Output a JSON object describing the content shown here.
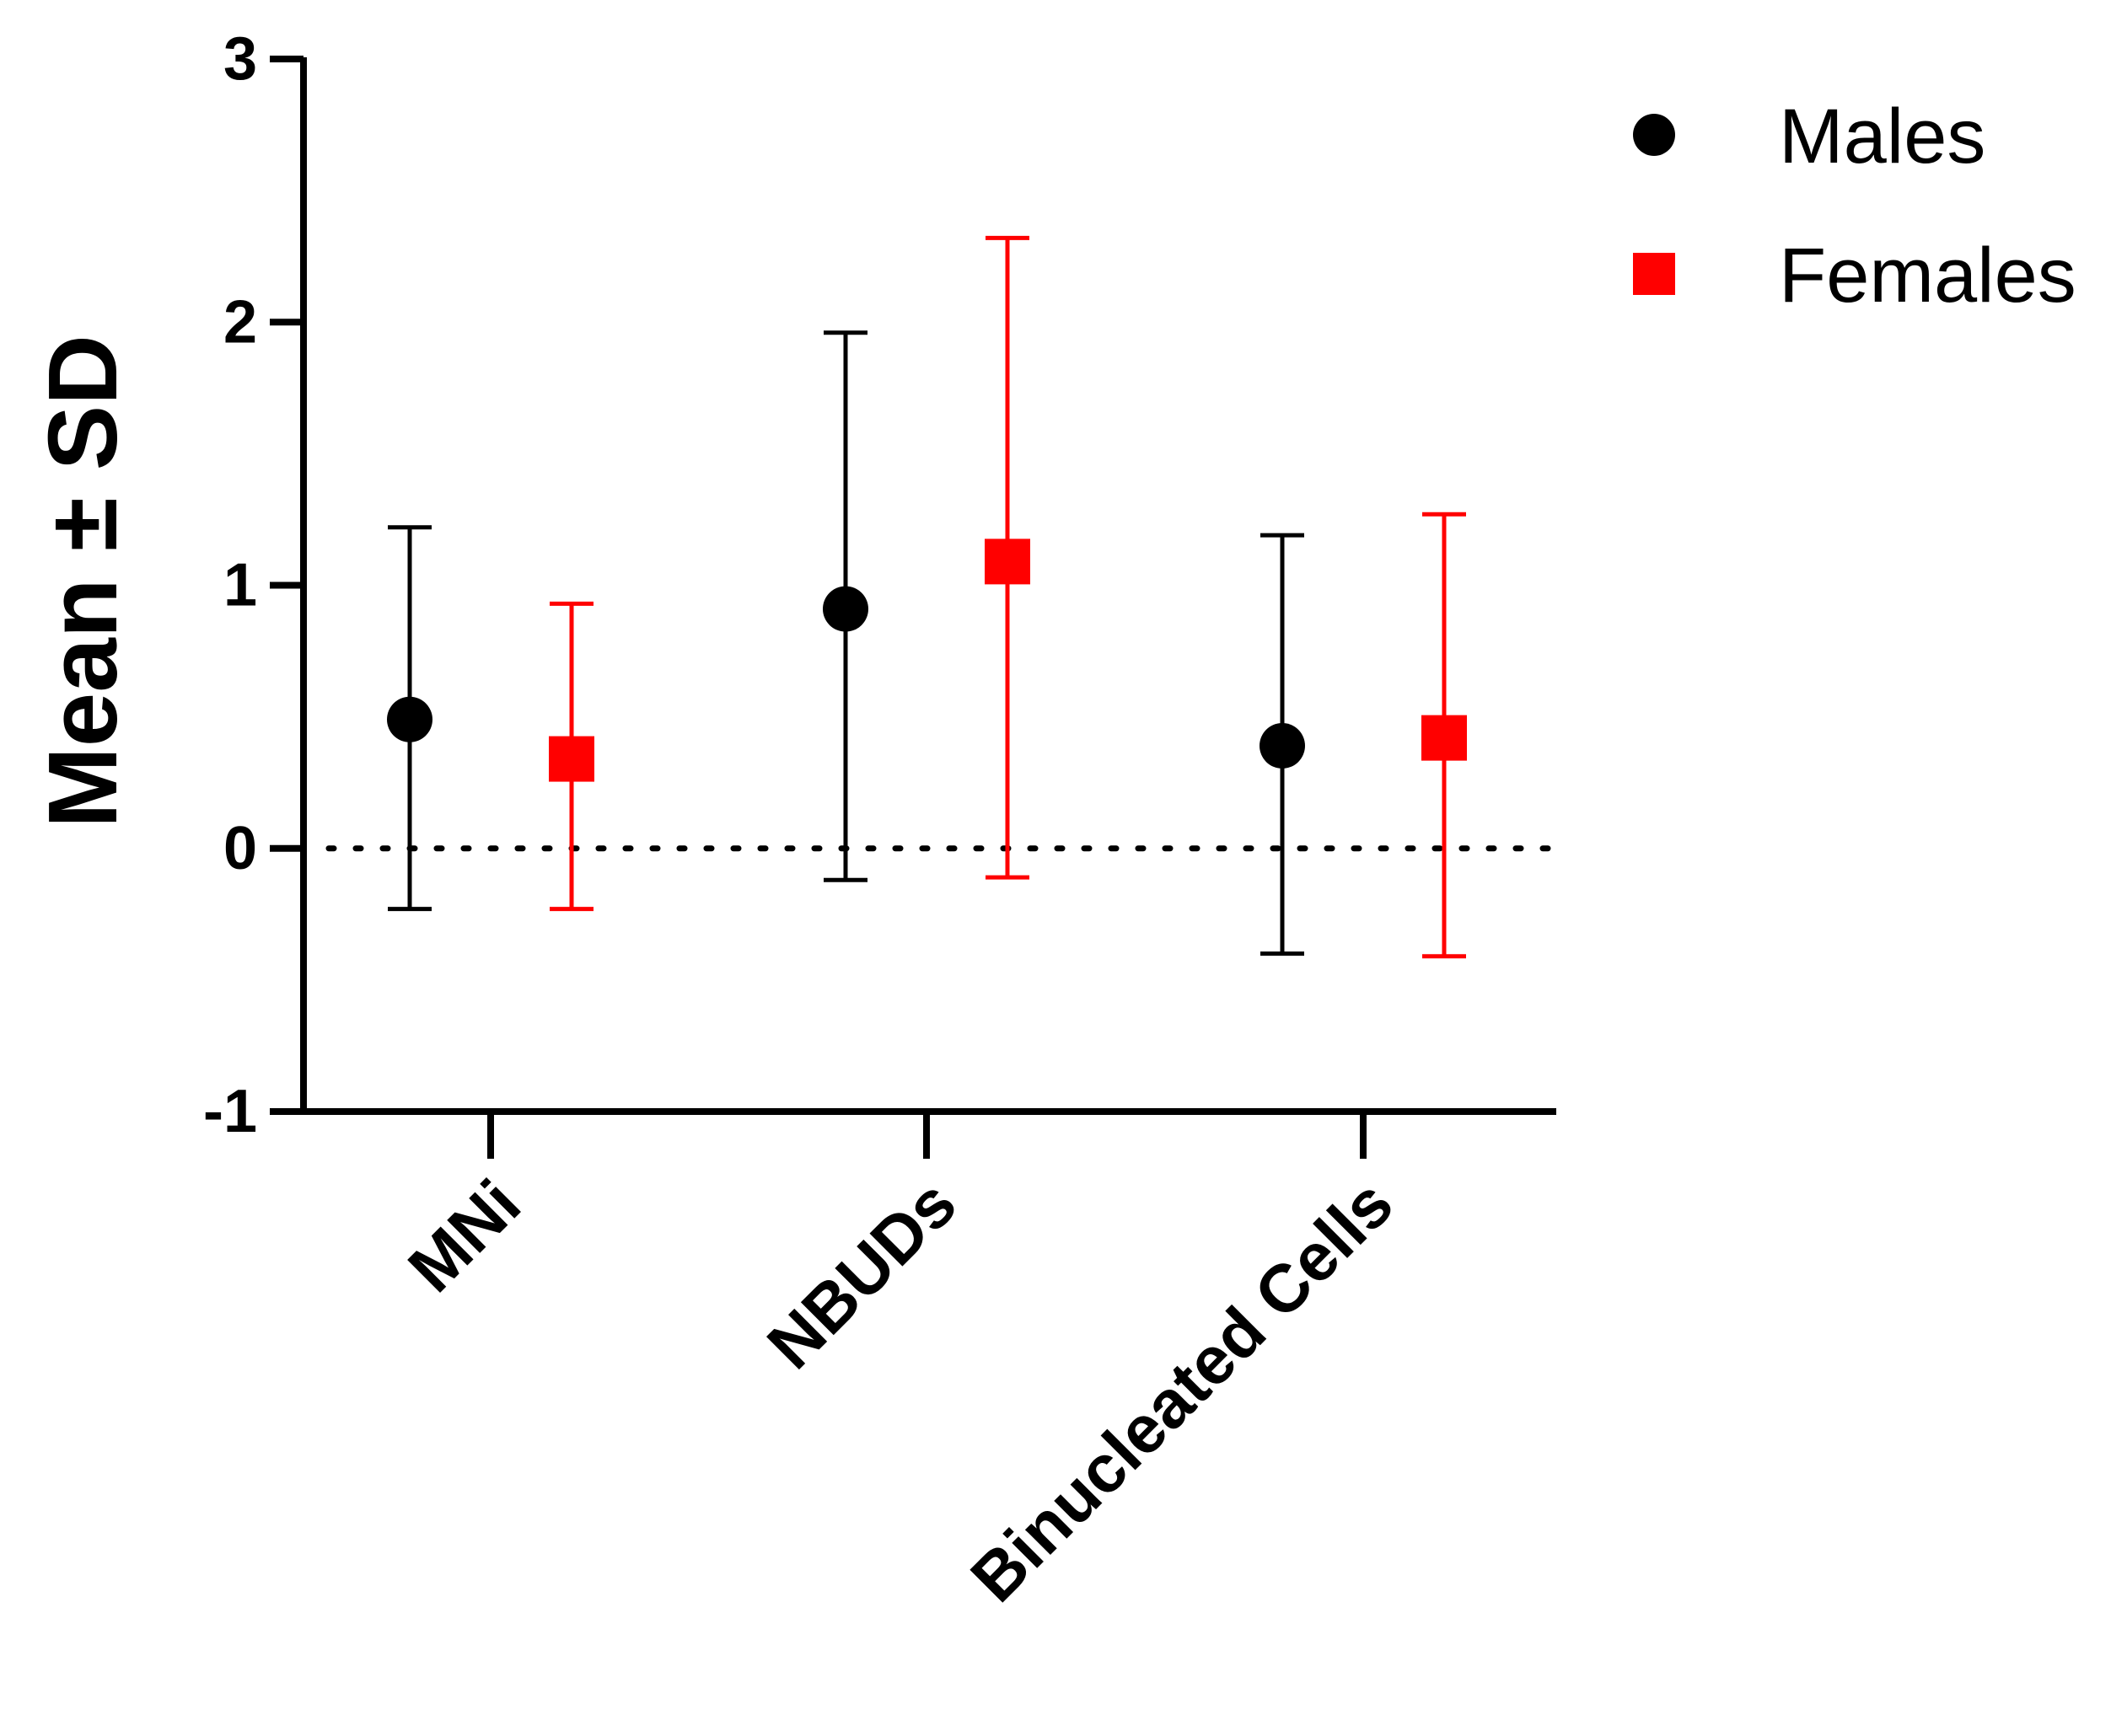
{
  "chart_data": {
    "type": "scatter",
    "ylabel": "Mean ± SD",
    "ylim": [
      -1,
      3
    ],
    "yticks": [
      -1,
      0,
      1,
      2,
      3
    ],
    "reference_line": 0,
    "categories": [
      "MNi",
      "NBUDs",
      "Binucleated Cells"
    ],
    "legend_position": "top-right",
    "series": [
      {
        "name": "Males",
        "marker": "circle",
        "color": "#000000",
        "means": [
          0.49,
          0.91,
          0.39
        ],
        "sd_upper": [
          1.22,
          1.96,
          1.19
        ],
        "sd_lower": [
          -0.23,
          -0.12,
          -0.4
        ]
      },
      {
        "name": "Females",
        "marker": "square",
        "color": "#ff0000",
        "means": [
          0.34,
          1.09,
          0.42
        ],
        "sd_upper": [
          0.93,
          2.32,
          1.27
        ],
        "sd_lower": [
          -0.23,
          -0.11,
          -0.41
        ]
      }
    ]
  }
}
